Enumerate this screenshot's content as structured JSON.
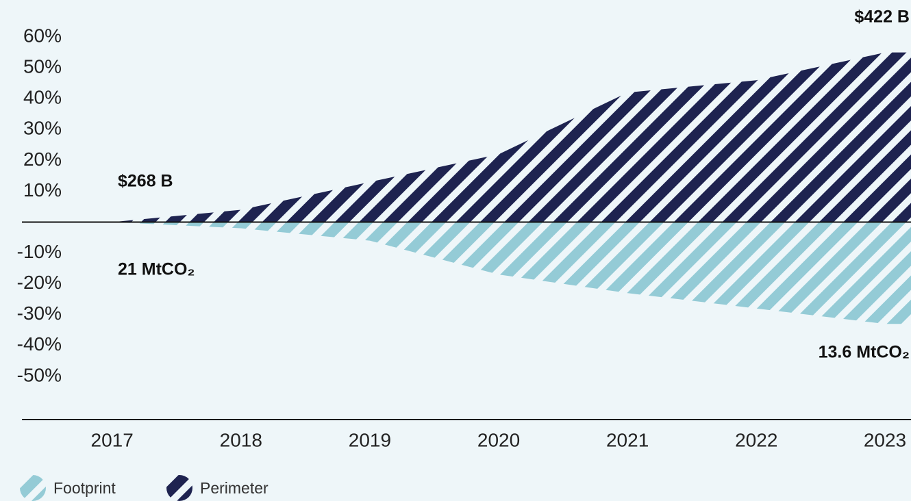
{
  "chart_data": {
    "type": "area",
    "x": [
      2017,
      2018,
      2019,
      2020,
      2021,
      2022,
      2023
    ],
    "series": [
      {
        "name": "Footprint",
        "color": "#94cbd6",
        "values": [
          0,
          -2,
          -6,
          -17,
          -23,
          -28,
          -33
        ]
      },
      {
        "name": "Perimeter",
        "color": "#1e2350",
        "values": [
          0,
          4,
          13,
          22,
          42,
          46,
          55
        ]
      }
    ],
    "xlim": [
      2016.3,
      2023.2
    ],
    "xticks": [
      2017,
      2018,
      2019,
      2020,
      2021,
      2022,
      2023
    ],
    "ylim": [
      -64,
      72
    ],
    "yticks": [
      {
        "value": 60,
        "label": "60%"
      },
      {
        "value": 50,
        "label": "50%"
      },
      {
        "value": 40,
        "label": "40%"
      },
      {
        "value": 30,
        "label": "30%"
      },
      {
        "value": 20,
        "label": "20%"
      },
      {
        "value": 10,
        "label": "10%"
      },
      {
        "value": -10,
        "label": "-10%"
      },
      {
        "value": -20,
        "label": "-20%"
      },
      {
        "value": -30,
        "label": "-30%"
      },
      {
        "value": -40,
        "label": "-40%"
      },
      {
        "value": -50,
        "label": "-50%"
      }
    ],
    "annotations": [
      "$268 B",
      "21 MtCO₂",
      "$422 B",
      "13.6 MtCO₂"
    ],
    "legend": "bottom-left",
    "grid": false
  }
}
